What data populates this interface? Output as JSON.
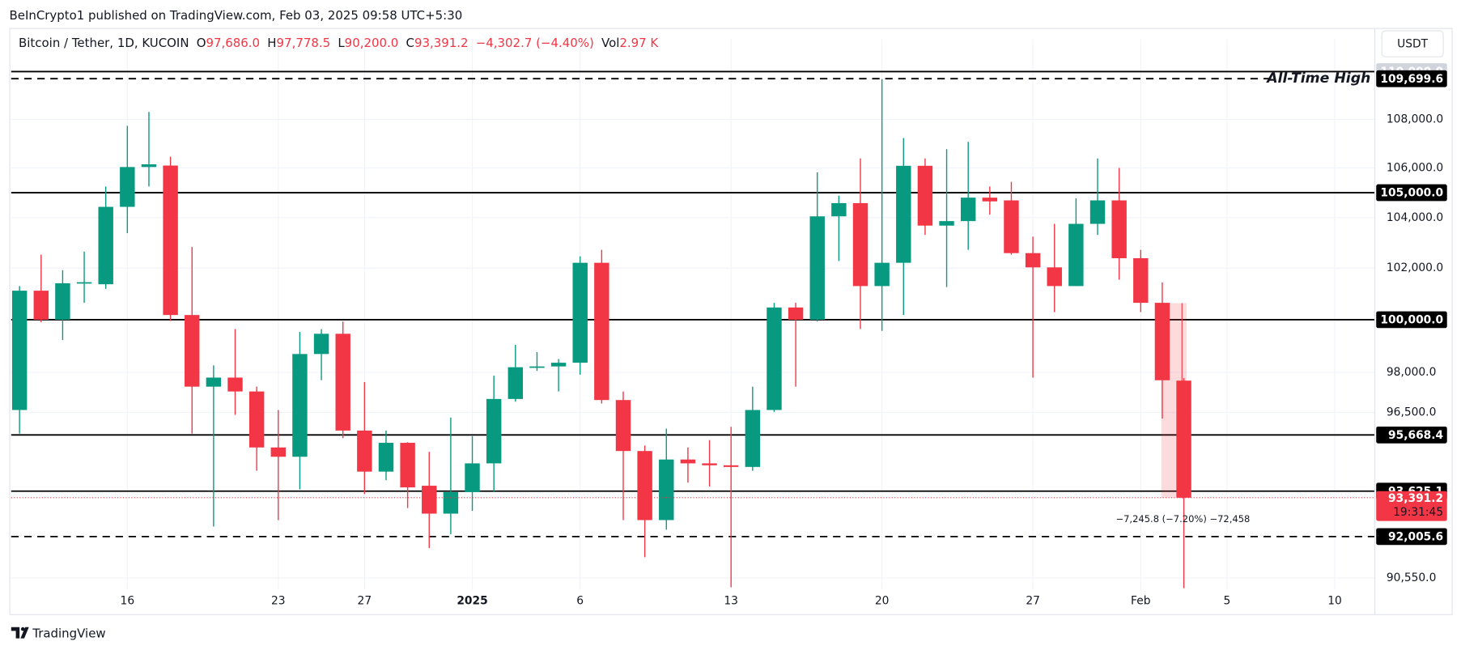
{
  "published": "BeInCrypto1 published on TradingView.com, Feb 03, 2025 09:58 UTC+5:30",
  "brand": "TradingView",
  "currency": "USDT",
  "chart_data": {
    "type": "candlestick",
    "title": "Bitcoin / Tether, 1D, KUCOIN",
    "ohlc_legend": [
      {
        "key": "O",
        "text": "97,686.0"
      },
      {
        "key": "H",
        "text": "97,778.5"
      },
      {
        "key": "L",
        "text": "90,200.0"
      },
      {
        "key": "C",
        "text": "93,391.2"
      }
    ],
    "change": "−4,302.7 (−4.40%)",
    "volume": {
      "key": "Vol",
      "text": "2.97 K"
    },
    "up_color": "#089981",
    "down_color": "#f23645",
    "categories": [
      null,
      null,
      null,
      null,
      null,
      "16",
      null,
      null,
      null,
      null,
      null,
      null,
      "23",
      null,
      null,
      null,
      "27",
      null,
      null,
      null,
      null,
      "2025",
      null,
      null,
      null,
      null,
      "6",
      null,
      null,
      null,
      null,
      null,
      null,
      "13",
      null,
      null,
      null,
      null,
      null,
      null,
      "20",
      null,
      null,
      null,
      null,
      null,
      null,
      "27",
      null,
      null,
      null,
      null,
      "Feb",
      null,
      null,
      null,
      "5",
      null,
      null,
      null,
      null,
      "10",
      null
    ],
    "open": [
      96590,
      101120,
      100000,
      101400,
      101370,
      104430,
      106040,
      106100,
      100180,
      97460,
      97800,
      97280,
      95210,
      94870,
      98690,
      99460,
      95830,
      94330,
      95380,
      93820,
      92820,
      93590,
      94630,
      97000,
      98190,
      98220,
      98360,
      102210,
      96960,
      95080,
      92590,
      94770,
      94630,
      94560,
      94500,
      96590,
      100470,
      100000,
      104050,
      104580,
      101300,
      102210,
      106090,
      103680,
      103860,
      104800,
      104690,
      102590,
      102030,
      101300,
      103750,
      104690,
      102390,
      100650,
      97686,
      null,
      null,
      null,
      null,
      null,
      null,
      null,
      null
    ],
    "high": [
      101300,
      102530,
      101920,
      102650,
      105250,
      107730,
      108310,
      106460,
      102830,
      98260,
      99640,
      97460,
      96590,
      99530,
      99640,
      99930,
      97630,
      95830,
      95400,
      95050,
      96310,
      95620,
      97870,
      99040,
      98760,
      98500,
      102460,
      102720,
      97280,
      95280,
      95900,
      95210,
      95480,
      95970,
      97460,
      100650,
      100650,
      105820,
      104880,
      106390,
      109680,
      107230,
      106390,
      106770,
      107070,
      105250,
      105440,
      103240,
      103750,
      104770,
      106390,
      106000,
      102720,
      101440,
      97778.5,
      null,
      null,
      null,
      null,
      null,
      null,
      null,
      null
    ],
    "low": [
      95720,
      99900,
      99220,
      100650,
      101190,
      103380,
      105250,
      99950,
      95720,
      92360,
      96410,
      94360,
      92590,
      93690,
      97700,
      95550,
      93520,
      94020,
      93020,
      91600,
      92090,
      92920,
      93590,
      96900,
      98050,
      97280,
      97910,
      96830,
      92590,
      91280,
      92250,
      93930,
      93790,
      90230,
      94360,
      96520,
      97460,
      99930,
      102280,
      99640,
      99570,
      100180,
      103310,
      101260,
      102720,
      104120,
      102530,
      97800,
      100290,
      101300,
      103310,
      101550,
      100290,
      96270,
      90200,
      null,
      null,
      null,
      null,
      null,
      null,
      null,
      null
    ],
    "close": [
      101120,
      100000,
      101410,
      101450,
      104430,
      106040,
      106150,
      100180,
      97460,
      97800,
      97280,
      95210,
      94870,
      98690,
      99460,
      95830,
      94330,
      95380,
      93760,
      92820,
      93590,
      94630,
      97000,
      98190,
      98220,
      98360,
      102210,
      96960,
      95080,
      92590,
      94770,
      94630,
      94560,
      94500,
      96590,
      100470,
      100000,
      104050,
      104580,
      101300,
      102210,
      106090,
      103680,
      103860,
      104800,
      104650,
      102590,
      102030,
      101300,
      103750,
      104690,
      102390,
      100650,
      97700,
      93391.2,
      null,
      null,
      null,
      null,
      null,
      null,
      null,
      null
    ],
    "ylim": [
      90140,
      110585
    ],
    "yscale": "log",
    "yticks": [
      {
        "value": 108000,
        "label": "108,000.0"
      },
      {
        "value": 106000,
        "label": "106,000.0"
      },
      {
        "value": 104000,
        "label": "104,000.0"
      },
      {
        "value": 102000,
        "label": "102,000.0"
      },
      {
        "value": 98000,
        "label": "98,000.0"
      },
      {
        "value": 96500,
        "label": "96,500.0"
      },
      {
        "value": 90550,
        "label": "90,550.0"
      }
    ],
    "grid": true,
    "levels": [
      {
        "value": 110000,
        "label": "110,000.0",
        "style": "solid",
        "badge_color": "#d1d4dc"
      },
      {
        "value": 109699.6,
        "label": "109,699.6",
        "style": "dashed",
        "badge_color": "#000000",
        "note": "All-Time High"
      },
      {
        "value": 105000,
        "label": "105,000.0",
        "style": "solid",
        "badge_color": "#000000"
      },
      {
        "value": 100000,
        "label": "100,000.0",
        "style": "solid",
        "badge_color": "#000000"
      },
      {
        "value": 95668.4,
        "label": "95,668.4",
        "style": "solid",
        "badge_color": "#000000"
      },
      {
        "value": 93625.1,
        "label": "93,625.1",
        "style": "solid",
        "badge_color": "#000000"
      },
      {
        "value": 92005.6,
        "label": "92,005.6",
        "style": "dashed",
        "badge_color": "#000000"
      }
    ],
    "current_price": {
      "value": 93391.2,
      "label": "93,391.2",
      "countdown": "19:31:45",
      "color": "#f23645"
    },
    "measure": {
      "start": 100637,
      "end": 93391.2,
      "label": "−7,245.8 (−7.20%) −72,458"
    }
  }
}
